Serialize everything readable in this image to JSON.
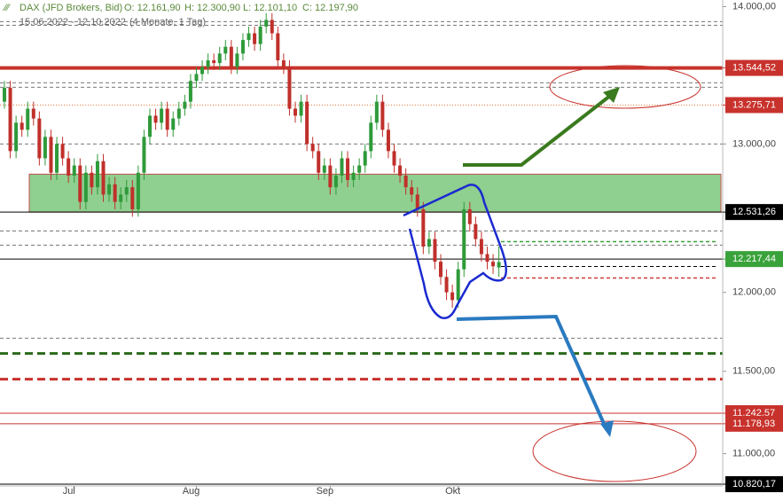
{
  "chart_data": {
    "type": "candlestick",
    "title": "DAX (JFD Brokers, Bid)",
    "header_values": [
      "O: 12.161,90",
      "H: 12.300,90",
      "L: 12.101,10",
      "C: 12.197,90"
    ],
    "subtitle": "15.06.2022 - 12.10.2022",
    "subtitle_note": "(4 Monate, 1 Tag)",
    "categories": [
      null,
      null,
      null,
      null,
      null,
      null,
      null,
      null,
      null,
      null,
      null,
      null,
      "Jul",
      null,
      null,
      null,
      null,
      null,
      null,
      null,
      null,
      null,
      null,
      null,
      null,
      null,
      null,
      null,
      null,
      null,
      null,
      null,
      null,
      "Aug",
      null,
      null,
      null,
      null,
      null,
      null,
      null,
      null,
      null,
      null,
      null,
      null,
      null,
      null,
      null,
      null,
      null,
      null,
      null,
      null,
      null,
      null,
      "Sep",
      null,
      null,
      null,
      null,
      null,
      null,
      null,
      null,
      null,
      null,
      null,
      null,
      null,
      null,
      null,
      null,
      null,
      null,
      null,
      null,
      null,
      "Okt",
      null,
      null,
      null,
      null,
      null,
      null,
      null
    ],
    "open": [
      13300,
      13400,
      12950,
      13150,
      13100,
      13250,
      13180,
      12900,
      13050,
      12800,
      13000,
      12900,
      12780,
      12850,
      12600,
      12800,
      12700,
      12880,
      12650,
      12720,
      12600,
      12650,
      12700,
      12550,
      12800,
      13050,
      13200,
      13150,
      13250,
      13100,
      13180,
      13250,
      13300,
      13450,
      13500,
      13550,
      13600,
      13580,
      13650,
      13700,
      13550,
      13650,
      13750,
      13800,
      13720,
      13850,
      13900,
      13800,
      13600,
      13550,
      13250,
      13200,
      13300,
      13000,
      12950,
      12800,
      12850,
      12700,
      12780,
      12900,
      12750,
      12800,
      12850,
      12950,
      13150,
      13300,
      13100,
      12950,
      12850,
      12780,
      12700,
      12650,
      12550,
      12300,
      12350,
      12200,
      12100,
      12000,
      11950,
      12150,
      12550,
      12450,
      12350,
      12250,
      12200,
      12161.9
    ],
    "high": [
      13450,
      13450,
      13200,
      13200,
      13300,
      13300,
      13230,
      13100,
      13100,
      13050,
      13050,
      12950,
      12900,
      12900,
      12850,
      12850,
      12930,
      12930,
      12770,
      12770,
      12700,
      12750,
      12750,
      12850,
      13100,
      13250,
      13250,
      13300,
      13300,
      13230,
      13300,
      13350,
      13500,
      13550,
      13600,
      13650,
      13650,
      13700,
      13750,
      13750,
      13700,
      13800,
      13850,
      13850,
      13900,
      13950,
      13950,
      13850,
      13650,
      13600,
      13300,
      13350,
      13350,
      13050,
      13000,
      12900,
      12900,
      12830,
      12950,
      12950,
      12850,
      12900,
      13000,
      13200,
      13350,
      13350,
      13150,
      13000,
      12900,
      12830,
      12750,
      12700,
      12600,
      12400,
      12400,
      12250,
      12150,
      12050,
      12200,
      12600,
      12600,
      12500,
      12400,
      12300,
      12250,
      12300.9
    ],
    "low": [
      13250,
      12900,
      12900,
      13050,
      13050,
      13130,
      12850,
      12850,
      12750,
      12750,
      12850,
      12730,
      12730,
      12550,
      12550,
      12650,
      12650,
      12600,
      12600,
      12550,
      12550,
      12600,
      12500,
      12500,
      12750,
      13000,
      13100,
      13100,
      13050,
      13050,
      13130,
      13200,
      13250,
      13400,
      13450,
      13500,
      13530,
      13530,
      13600,
      13500,
      13500,
      13600,
      13700,
      13670,
      13670,
      13800,
      13750,
      13550,
      13500,
      13200,
      13150,
      13150,
      12950,
      12900,
      12750,
      12750,
      12650,
      12650,
      12730,
      12700,
      12700,
      12750,
      12800,
      12900,
      13100,
      13050,
      12900,
      12800,
      12730,
      12650,
      12600,
      12500,
      12250,
      12250,
      12150,
      12050,
      11950,
      11900,
      11900,
      12100,
      12400,
      12300,
      12200,
      12150,
      12120,
      12101.1
    ],
    "close": [
      13400,
      12950,
      13150,
      13100,
      13250,
      13180,
      12900,
      13050,
      12800,
      13000,
      12900,
      12780,
      12850,
      12600,
      12800,
      12700,
      12880,
      12650,
      12720,
      12600,
      12650,
      12700,
      12550,
      12800,
      13050,
      13200,
      13150,
      13250,
      13100,
      13180,
      13250,
      13300,
      13450,
      13500,
      13550,
      13600,
      13580,
      13650,
      13700,
      13550,
      13650,
      13750,
      13800,
      13720,
      13850,
      13900,
      13800,
      13600,
      13550,
      13250,
      13200,
      13300,
      13000,
      12950,
      12800,
      12850,
      12700,
      12780,
      12900,
      12750,
      12800,
      12850,
      12950,
      13150,
      13300,
      13100,
      12950,
      12850,
      12780,
      12700,
      12650,
      12550,
      12300,
      12350,
      12200,
      12100,
      12000,
      11950,
      12150,
      12550,
      12450,
      12350,
      12250,
      12200,
      12170,
      12197.9
    ],
    "up_color": "#2f9a3a",
    "down_color": "#c0302b",
    "log_scale": true,
    "ylim": [
      10810,
      14050
    ],
    "yticks": [
      {
        "value": 14000,
        "label": "14.000,00"
      },
      {
        "value": 13000,
        "label": "13.000,00"
      },
      {
        "value": 12000,
        "label": "12.000,00"
      },
      {
        "value": 11500,
        "label": "11.500,00"
      },
      {
        "value": 11000,
        "label": "11.000,00"
      }
    ],
    "zone": {
      "from": 12531.26,
      "to": 12790,
      "color": "#8fcf8f"
    },
    "levels": [
      {
        "value": 13887,
        "color": "#777",
        "style": "dashed"
      },
      {
        "value": 13860,
        "color": "#777",
        "style": "dashed"
      },
      {
        "value": 13544.52,
        "label": "13.544,52",
        "color": "#c8322c",
        "style": "thick",
        "box": "#c8322c"
      },
      {
        "value": 13436,
        "color": "#777",
        "style": "dashed"
      },
      {
        "value": 13404,
        "color": "#777",
        "style": "dashed"
      },
      {
        "value": 13275.71,
        "label": "13.275,71",
        "color": "#e07a3a",
        "style": "dotted",
        "box": "#c8322c"
      },
      {
        "value": 13000,
        "color": "#777",
        "style": "dashed"
      },
      {
        "value": 12531.26,
        "label": "12.531,26",
        "color": "#000",
        "style": "solid",
        "box": "#000"
      },
      {
        "value": 12404,
        "color": "#777",
        "style": "dashed"
      },
      {
        "value": 12333,
        "color": "#3aa23a",
        "style": "short-dashed"
      },
      {
        "value": 12309,
        "color": "#777",
        "style": "dashed"
      },
      {
        "value": 12217.44,
        "label": "12.217,44",
        "color": "#000",
        "style": "solid",
        "box": "#3aa23a"
      },
      {
        "value": 12169,
        "color": "#000",
        "style": "short-dashed"
      },
      {
        "value": 12093,
        "color": "#d03a3a",
        "style": "short-dashed"
      },
      {
        "value": 11707,
        "color": "#777",
        "style": "dashed"
      },
      {
        "value": 11611,
        "color": "#2a6a1a",
        "style": "thick-dashed"
      },
      {
        "value": 11451,
        "color": "#c8322c",
        "style": "thick-dashed"
      },
      {
        "value": 11242.57,
        "label": "11.242,57",
        "color": "#c8322c",
        "style": "solid",
        "box": "#c8322c"
      },
      {
        "value": 11178.93,
        "label": "11.178,93",
        "color": "#c8322c",
        "style": "solid",
        "box": "#c8322c"
      },
      {
        "value": 10820.17,
        "label": "10.820,17",
        "color": "#000",
        "style": "solid",
        "box": "#000"
      }
    ]
  }
}
